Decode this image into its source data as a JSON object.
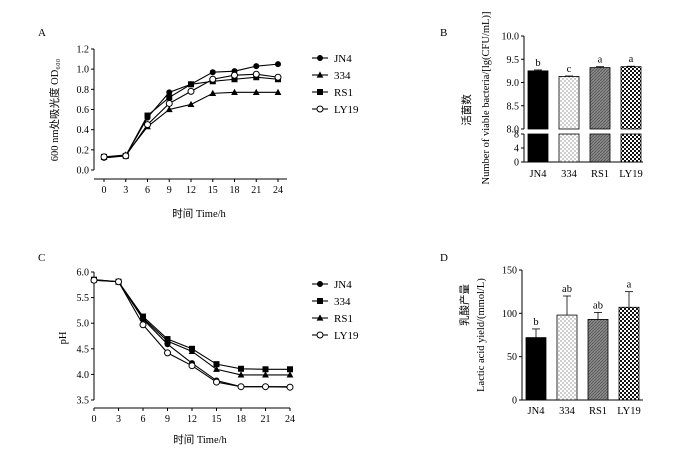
{
  "panels": {
    "a": "A",
    "b": "B",
    "c": "C",
    "d": "D"
  },
  "chart_data": [
    {
      "panel": "A",
      "type": "line",
      "x": [
        0,
        3,
        6,
        9,
        12,
        15,
        18,
        21,
        24
      ],
      "xticks": [
        "0",
        "3",
        "6",
        "9",
        "12",
        "15",
        "18",
        "21",
        "24"
      ],
      "yticks": [
        "0.0",
        "0.2",
        "0.4",
        "0.6",
        "0.8",
        "1.0",
        "1.2"
      ],
      "xlabel": "时间 Time/h",
      "ylabel": "600 nm处吸光度 OD₆₀₀",
      "xlim": [
        0,
        24
      ],
      "ylim": [
        0,
        1.2
      ],
      "legend_position": "right",
      "series": [
        {
          "name": "JN4",
          "marker": "filled-circle",
          "values": [
            0.12,
            0.14,
            0.52,
            0.77,
            0.85,
            0.97,
            0.98,
            1.03,
            1.05
          ]
        },
        {
          "name": "334",
          "marker": "filled-triangle",
          "values": [
            0.13,
            0.15,
            0.43,
            0.6,
            0.65,
            0.76,
            0.77,
            0.77,
            0.77
          ]
        },
        {
          "name": "RS1",
          "marker": "filled-square",
          "values": [
            0.13,
            0.14,
            0.54,
            0.72,
            0.85,
            0.88,
            0.9,
            0.92,
            0.9
          ]
        },
        {
          "name": "LY19",
          "marker": "open-circle",
          "values": [
            0.13,
            0.14,
            0.45,
            0.66,
            0.78,
            0.9,
            0.94,
            0.95,
            0.92
          ]
        }
      ]
    },
    {
      "panel": "B",
      "type": "bar",
      "categories": [
        "JN4",
        "334",
        "RS1",
        "LY19"
      ],
      "values": [
        9.25,
        9.13,
        9.32,
        9.34
      ],
      "errors": [
        0.02,
        0.01,
        0.02,
        0.01
      ],
      "letters": [
        "b",
        "c",
        "a",
        "a"
      ],
      "fills": [
        "black",
        "dotted",
        "gray-hatched",
        "checkered"
      ],
      "yticks_upper": [
        "8.0",
        "8.5",
        "9.0",
        "9.5",
        "10.0"
      ],
      "yticks_lower": [
        "0",
        "4",
        "8"
      ],
      "ylim": [
        8.0,
        10.0
      ],
      "broken_axis": true,
      "ylabel_cn": "活菌数",
      "ylabel_en": "Number of viable bacteria/[lg(CFU/mL)]"
    },
    {
      "panel": "C",
      "type": "line",
      "x": [
        0,
        3,
        6,
        9,
        12,
        15,
        18,
        21,
        24
      ],
      "xticks": [
        "0",
        "3",
        "6",
        "9",
        "12",
        "15",
        "18",
        "21",
        "24"
      ],
      "yticks": [
        "3.5",
        "4.0",
        "4.5",
        "5.0",
        "5.5",
        "6.0"
      ],
      "xlabel": "时间 Time/h",
      "ylabel": "pH",
      "xlim": [
        0,
        24
      ],
      "ylim": [
        3.5,
        6.0
      ],
      "legend_position": "right",
      "series": [
        {
          "name": "JN4",
          "marker": "filled-circle",
          "values": [
            5.84,
            5.81,
            5.08,
            4.59,
            4.22,
            3.88,
            3.76,
            3.76,
            3.76
          ]
        },
        {
          "name": "334",
          "marker": "filled-square",
          "values": [
            5.85,
            5.81,
            5.13,
            4.69,
            4.5,
            4.2,
            4.11,
            4.1,
            4.1
          ]
        },
        {
          "name": "RS1",
          "marker": "filled-triangle",
          "values": [
            5.85,
            5.81,
            5.1,
            4.65,
            4.45,
            4.1,
            3.99,
            3.99,
            3.99
          ]
        },
        {
          "name": "LY19",
          "marker": "open-circle",
          "values": [
            5.84,
            5.81,
            4.97,
            4.42,
            4.17,
            3.85,
            3.76,
            3.76,
            3.75
          ]
        }
      ]
    },
    {
      "panel": "D",
      "type": "bar",
      "categories": [
        "JN4",
        "334",
        "RS1",
        "LY19"
      ],
      "values": [
        72,
        98,
        93,
        107
      ],
      "errors": [
        10,
        22,
        8,
        18
      ],
      "letters": [
        "b",
        "ab",
        "ab",
        "a"
      ],
      "fills": [
        "black",
        "dotted",
        "gray-hatched",
        "checkered"
      ],
      "yticks": [
        "0",
        "50",
        "100",
        "150"
      ],
      "ylim": [
        0,
        150
      ],
      "ylabel_cn": "乳酸产量",
      "ylabel_en": "Lactic acid yield/(mmol/L)"
    }
  ]
}
